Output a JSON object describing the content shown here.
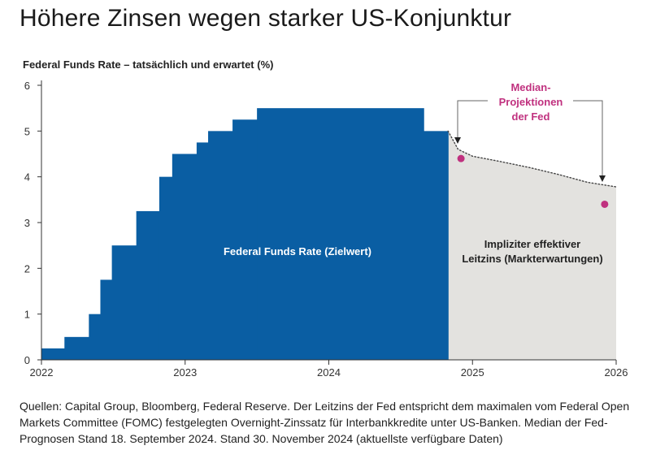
{
  "title": "Höhere Zinsen wegen starker US-Konjunktur",
  "source_note": "Quellen: Capital Group, Bloomberg, Federal Reserve. Der Leitzins der Fed entspricht dem maximalen vom Federal Open Markets Committee (FOMC) festgelegten Overnight-Zinssatz für Interbankkredite unter US-Banken. Median der Fed-Prognosen Stand 18. September 2024. Stand 30. November 2024 (aktuellste verfügbare Daten)",
  "colors": {
    "fed_funds": "#0a5ea3",
    "implied": "#e3e2df",
    "median": "#c0317f",
    "axis": "#333333",
    "dotted_line": "#444444"
  },
  "chart_data": {
    "type": "area",
    "title": "Federal Funds Rate – tatsächlich und erwartet (%)",
    "xlabel": "",
    "ylabel": "",
    "xlim": [
      2022.0,
      2026.0
    ],
    "ylim": [
      0,
      6
    ],
    "x_ticks": [
      {
        "value": 2022,
        "label": "2022"
      },
      {
        "value": 2023,
        "label": "2023"
      },
      {
        "value": 2024,
        "label": "2024"
      },
      {
        "value": 2025,
        "label": "2025"
      },
      {
        "value": 2026,
        "label": "2026"
      }
    ],
    "y_ticks": [
      {
        "value": 0,
        "label": "0"
      },
      {
        "value": 1,
        "label": "1"
      },
      {
        "value": 2,
        "label": "2"
      },
      {
        "value": 3,
        "label": "3"
      },
      {
        "value": 4,
        "label": "4"
      },
      {
        "value": 5,
        "label": "5"
      },
      {
        "value": 6,
        "label": "6"
      }
    ],
    "series": [
      {
        "name": "Federal Funds Rate (Zielwert)",
        "style": "step",
        "steps": [
          {
            "x": 2022.0,
            "y": 0.25
          },
          {
            "x": 2022.16,
            "y": 0.5
          },
          {
            "x": 2022.33,
            "y": 1.0
          },
          {
            "x": 2022.41,
            "y": 1.75
          },
          {
            "x": 2022.49,
            "y": 2.5
          },
          {
            "x": 2022.66,
            "y": 3.25
          },
          {
            "x": 2022.82,
            "y": 4.0
          },
          {
            "x": 2022.91,
            "y": 4.5
          },
          {
            "x": 2023.08,
            "y": 4.75
          },
          {
            "x": 2023.16,
            "y": 5.0
          },
          {
            "x": 2023.33,
            "y": 5.25
          },
          {
            "x": 2023.5,
            "y": 5.5
          },
          {
            "x": 2024.66,
            "y": 5.0
          }
        ],
        "end_x": 2024.83
      },
      {
        "name": "Impliziter effektiver Leitzins (Markterwartungen)",
        "style": "dotted_curve",
        "points": [
          {
            "x": 2024.83,
            "y": 5.0
          },
          {
            "x": 2024.9,
            "y": 4.6
          },
          {
            "x": 2025.0,
            "y": 4.45
          },
          {
            "x": 2025.2,
            "y": 4.33
          },
          {
            "x": 2025.4,
            "y": 4.2
          },
          {
            "x": 2025.6,
            "y": 4.05
          },
          {
            "x": 2025.8,
            "y": 3.88
          },
          {
            "x": 2026.0,
            "y": 3.78
          }
        ]
      },
      {
        "name": "Median-Projektionen der Fed",
        "style": "points",
        "points": [
          {
            "x": 2024.92,
            "y": 4.4
          },
          {
            "x": 2025.92,
            "y": 3.4
          }
        ]
      }
    ],
    "annotations": {
      "fed_funds_label": "Federal Funds Rate (Zielwert)",
      "implied_label_line1": "Impliziter effektiver",
      "implied_label_line2": "Leitzins (Markterwartungen)",
      "median_label_line1": "Median-",
      "median_label_line2": "Projektionen",
      "median_label_line3": "der Fed"
    }
  }
}
